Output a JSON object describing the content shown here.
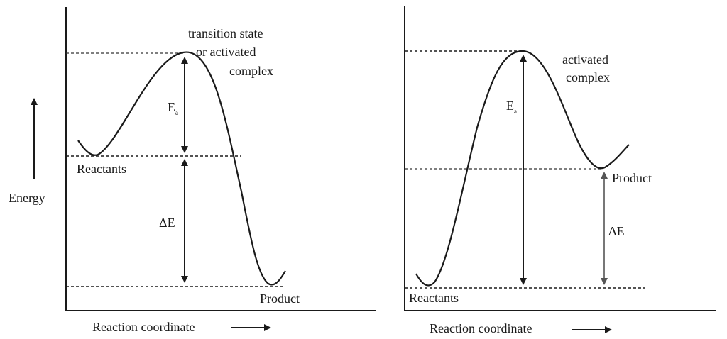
{
  "left_diagram": {
    "ylabel": "Energy",
    "xlabel": "Reaction coordinate",
    "peak_label_line1": "transition state",
    "peak_label_line2": "or activated",
    "peak_label_line3": "complex",
    "ea_label_main": "E",
    "ea_label_sub": "a",
    "delta_e_label": "ΔE",
    "reactants_label": "Reactants",
    "product_label": "Product"
  },
  "right_diagram": {
    "xlabel": "Reaction coordinate",
    "peak_label_line1": "activated",
    "peak_label_line2": "complex",
    "ea_label_main": "E",
    "ea_label_sub": "a",
    "delta_e_label": "ΔE",
    "reactants_label": "Reactants",
    "product_label": "Product"
  }
}
